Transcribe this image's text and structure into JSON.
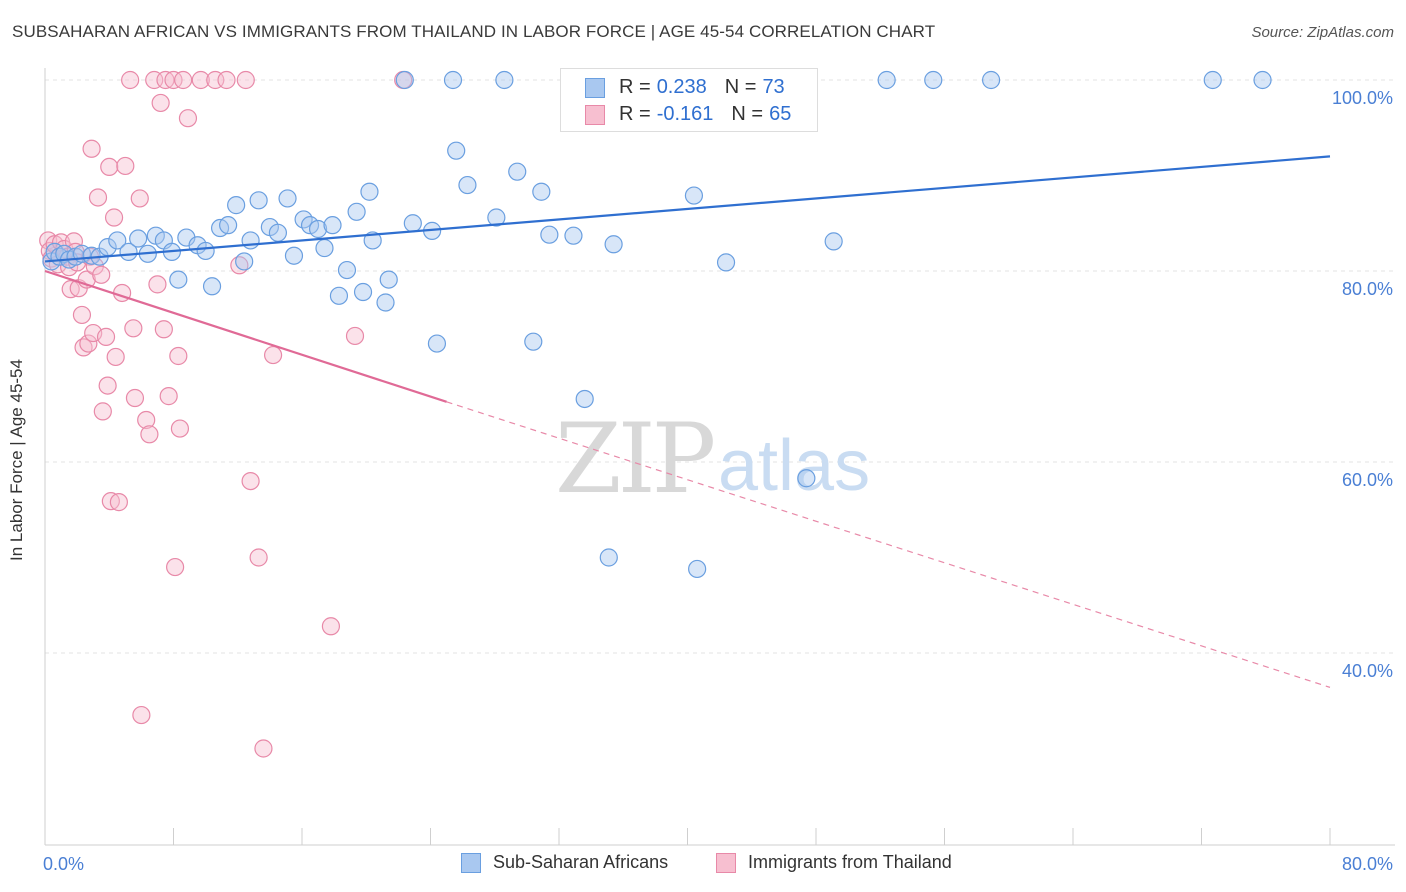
{
  "title": "SUBSAHARAN AFRICAN VS IMMIGRANTS FROM THAILAND IN LABOR FORCE | AGE 45-54 CORRELATION CHART",
  "source": "Source: ZipAtlas.com",
  "watermark": {
    "zip": "ZIP",
    "atlas": "atlas"
  },
  "legend": {
    "rows": [
      {
        "r_label": "R =",
        "r_value": "0.238",
        "n_label": "N =",
        "n_value": "73",
        "color": "#a9c8f0",
        "stroke": "#6a9fe0"
      },
      {
        "r_label": "R =",
        "r_value": "-0.161",
        "n_label": "N =",
        "n_value": "65",
        "color": "#f7bfd0",
        "stroke": "#e889a8"
      }
    ]
  },
  "bottom_legend": [
    {
      "label": "Sub-Saharan Africans",
      "color": "#a9c8f0",
      "stroke": "#6a9fe0"
    },
    {
      "label": "Immigrants from Thailand",
      "color": "#f7bfd0",
      "stroke": "#e889a8"
    }
  ],
  "chart_data": {
    "type": "scatter",
    "title": "SUBSAHARAN AFRICAN VS IMMIGRANTS FROM THAILAND IN LABOR FORCE | AGE 45-54 CORRELATION CHART",
    "xlabel": "",
    "ylabel": "In Labor Force | Age 45-54",
    "xlim": [
      0,
      80
    ],
    "ylim": [
      20,
      101
    ],
    "x_tick_labels": [
      "0.0%",
      "80.0%"
    ],
    "y_ticks": [
      {
        "value": 100,
        "label": "100.0%"
      },
      {
        "value": 80,
        "label": "80.0%"
      },
      {
        "value": 60,
        "label": "60.0%"
      },
      {
        "value": 40,
        "label": "40.0%"
      }
    ],
    "grid": true,
    "legend_position": "top-center",
    "series": [
      {
        "name": "Sub-Saharan Africans",
        "color": "#6a9fe0",
        "fill": "#a9c8f0",
        "trend": {
          "x": [
            0,
            80
          ],
          "y": [
            81.0,
            92.0
          ],
          "style": "solid"
        },
        "points": [
          [
            0.4,
            81.0
          ],
          [
            0.6,
            82.0
          ],
          [
            0.9,
            81.5
          ],
          [
            1.2,
            81.8
          ],
          [
            1.5,
            81.2
          ],
          [
            1.9,
            81.5
          ],
          [
            2.3,
            81.8
          ],
          [
            2.9,
            81.6
          ],
          [
            3.4,
            81.5
          ],
          [
            3.9,
            82.5
          ],
          [
            4.5,
            83.2
          ],
          [
            5.2,
            82.0
          ],
          [
            5.8,
            83.4
          ],
          [
            6.4,
            81.8
          ],
          [
            6.9,
            83.7
          ],
          [
            7.4,
            83.2
          ],
          [
            7.9,
            82.0
          ],
          [
            8.3,
            79.1
          ],
          [
            8.8,
            83.5
          ],
          [
            9.5,
            82.7
          ],
          [
            10.0,
            82.1
          ],
          [
            10.4,
            78.4
          ],
          [
            10.9,
            84.5
          ],
          [
            11.4,
            84.8
          ],
          [
            11.9,
            86.9
          ],
          [
            12.4,
            81.0
          ],
          [
            12.8,
            83.2
          ],
          [
            13.3,
            87.4
          ],
          [
            14.0,
            84.6
          ],
          [
            14.5,
            84.0
          ],
          [
            15.1,
            87.6
          ],
          [
            15.5,
            81.6
          ],
          [
            16.1,
            85.4
          ],
          [
            16.5,
            84.8
          ],
          [
            17.0,
            84.4
          ],
          [
            17.4,
            82.4
          ],
          [
            17.9,
            84.8
          ],
          [
            18.3,
            77.4
          ],
          [
            18.8,
            80.1
          ],
          [
            19.4,
            86.2
          ],
          [
            19.8,
            77.8
          ],
          [
            20.2,
            88.3
          ],
          [
            20.4,
            83.2
          ],
          [
            21.2,
            76.7
          ],
          [
            21.4,
            79.1
          ],
          [
            22.4,
            100.0
          ],
          [
            22.9,
            85.0
          ],
          [
            24.1,
            84.2
          ],
          [
            24.4,
            72.4
          ],
          [
            25.4,
            100.0
          ],
          [
            25.6,
            92.6
          ],
          [
            26.3,
            89.0
          ],
          [
            28.1,
            85.6
          ],
          [
            28.6,
            100.0
          ],
          [
            29.4,
            90.4
          ],
          [
            30.4,
            72.6
          ],
          [
            30.9,
            88.3
          ],
          [
            31.4,
            83.8
          ],
          [
            32.9,
            83.7
          ],
          [
            33.6,
            66.6
          ],
          [
            34.1,
            100.0
          ],
          [
            35.4,
            82.8
          ],
          [
            36.1,
            100.0
          ],
          [
            35.1,
            50.0
          ],
          [
            40.4,
            87.9
          ],
          [
            40.6,
            48.8
          ],
          [
            41.4,
            100.0
          ],
          [
            42.4,
            80.9
          ],
          [
            47.4,
            58.3
          ],
          [
            49.1,
            83.1
          ],
          [
            52.4,
            100.0
          ],
          [
            55.3,
            100.0
          ],
          [
            58.9,
            100.0
          ],
          [
            72.7,
            100.0
          ],
          [
            75.8,
            100.0
          ]
        ]
      },
      {
        "name": "Immigrants from Thailand",
        "color": "#e889a8",
        "fill": "#f7bfd0",
        "trend": {
          "x": [
            0,
            25
          ],
          "y": [
            80.0,
            66.3
          ],
          "style": "solid",
          "extended_x": [
            25,
            80
          ],
          "extended_y": [
            66.3,
            36.4
          ],
          "extended_style": "dashed"
        },
        "points": [
          [
            0.2,
            83.2
          ],
          [
            0.3,
            82.1
          ],
          [
            0.4,
            81.3
          ],
          [
            0.6,
            82.8
          ],
          [
            0.8,
            80.7
          ],
          [
            1.0,
            83.0
          ],
          [
            1.2,
            82.3
          ],
          [
            1.4,
            81.5
          ],
          [
            1.5,
            80.4
          ],
          [
            1.6,
            78.1
          ],
          [
            1.8,
            83.1
          ],
          [
            1.9,
            82.0
          ],
          [
            2.0,
            80.9
          ],
          [
            2.1,
            78.2
          ],
          [
            2.3,
            75.4
          ],
          [
            2.4,
            72.0
          ],
          [
            2.6,
            79.1
          ],
          [
            2.7,
            72.4
          ],
          [
            2.8,
            81.5
          ],
          [
            2.9,
            92.8
          ],
          [
            3.0,
            73.5
          ],
          [
            3.1,
            80.5
          ],
          [
            3.3,
            87.7
          ],
          [
            3.5,
            79.6
          ],
          [
            3.6,
            65.3
          ],
          [
            3.8,
            73.1
          ],
          [
            3.9,
            68.0
          ],
          [
            4.0,
            90.9
          ],
          [
            4.1,
            55.9
          ],
          [
            4.3,
            85.6
          ],
          [
            4.4,
            71.0
          ],
          [
            4.6,
            55.8
          ],
          [
            4.8,
            77.7
          ],
          [
            5.0,
            91.0
          ],
          [
            5.3,
            100.0
          ],
          [
            5.5,
            74.0
          ],
          [
            5.6,
            66.7
          ],
          [
            5.9,
            87.6
          ],
          [
            6.0,
            33.5
          ],
          [
            6.3,
            64.4
          ],
          [
            6.5,
            62.9
          ],
          [
            6.8,
            100.0
          ],
          [
            7.0,
            78.6
          ],
          [
            7.2,
            97.6
          ],
          [
            7.4,
            73.9
          ],
          [
            7.5,
            100.0
          ],
          [
            7.7,
            66.9
          ],
          [
            8.0,
            100.0
          ],
          [
            8.1,
            49.0
          ],
          [
            8.3,
            71.1
          ],
          [
            8.4,
            63.5
          ],
          [
            8.6,
            100.0
          ],
          [
            8.9,
            96.0
          ],
          [
            9.7,
            100.0
          ],
          [
            10.6,
            100.0
          ],
          [
            11.3,
            100.0
          ],
          [
            12.1,
            80.6
          ],
          [
            12.5,
            100.0
          ],
          [
            12.8,
            58.0
          ],
          [
            13.3,
            50.0
          ],
          [
            13.6,
            30.0
          ],
          [
            14.2,
            71.2
          ],
          [
            17.8,
            42.8
          ],
          [
            19.3,
            73.2
          ],
          [
            22.3,
            100.0
          ]
        ]
      }
    ]
  }
}
